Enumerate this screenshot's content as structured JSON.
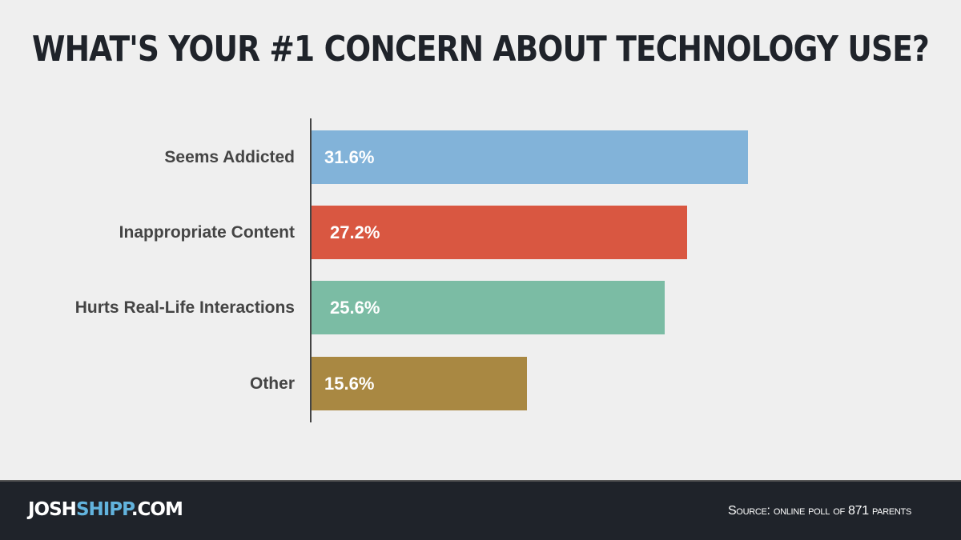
{
  "chart_data": {
    "type": "bar",
    "orientation": "horizontal",
    "title": "WHAT'S YOUR #1 CONCERN ABOUT TECHNOLOGY USE?",
    "categories": [
      "Seems Addicted",
      "Inappropriate Content",
      "Hurts Real-Life Interactions",
      "Other"
    ],
    "values": [
      31.6,
      27.2,
      25.6,
      15.6
    ],
    "data_labels": [
      "31.6%",
      "27.2%",
      "25.6%",
      "15.6%"
    ],
    "colors": [
      "#82b3d9",
      "#d95741",
      "#7bbca4",
      "#a98842"
    ],
    "xlim": [
      0,
      35
    ],
    "grid": false,
    "legend": "none"
  },
  "footer": {
    "logo_part1": "JOSH",
    "logo_part2": "SHIPP",
    "logo_part3": ".COM",
    "logo_accent_color": "#62b3dd",
    "source": "Source: online poll of 871 parents"
  }
}
